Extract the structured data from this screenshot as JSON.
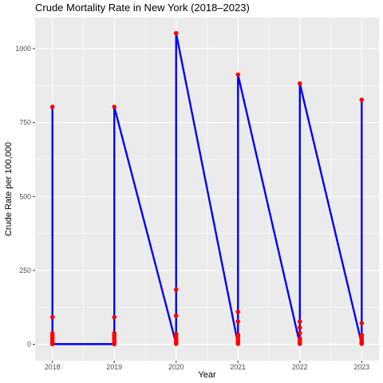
{
  "chart_data": {
    "type": "line",
    "title": "Crude Mortality Rate in New York (2018–2023)",
    "xlabel": "Year",
    "ylabel": "Crude Rate per 100,000",
    "x_ticks": [
      "2018",
      "2019",
      "2020",
      "2021",
      "2022",
      "2023"
    ],
    "y_ticks": [
      "0",
      "250",
      "500",
      "750",
      "1000"
    ],
    "xlim": [
      2017.72,
      2023.28
    ],
    "ylim": [
      -55,
      1105
    ],
    "grid": true,
    "legend": "none",
    "colors": {
      "line": "#0000ff",
      "points": "#ff0000",
      "panel": "#ebebeb",
      "grid": "#ffffff"
    },
    "series": [
      {
        "points": [
          {
            "x": 2018,
            "y": 803
          },
          {
            "x": 2018,
            "y": 92
          },
          {
            "x": 2018,
            "y": 38
          },
          {
            "x": 2018,
            "y": 30
          },
          {
            "x": 2018,
            "y": 22
          },
          {
            "x": 2018,
            "y": 15
          },
          {
            "x": 2018,
            "y": 8
          },
          {
            "x": 2018,
            "y": 4
          },
          {
            "x": 2018,
            "y": 1
          },
          {
            "x": 2019,
            "y": 1
          },
          {
            "x": 2019,
            "y": 4
          },
          {
            "x": 2019,
            "y": 8
          },
          {
            "x": 2019,
            "y": 15
          },
          {
            "x": 2019,
            "y": 22
          },
          {
            "x": 2019,
            "y": 30
          },
          {
            "x": 2019,
            "y": 38
          },
          {
            "x": 2019,
            "y": 92
          },
          {
            "x": 2019,
            "y": 803
          },
          {
            "x": 2020,
            "y": 2
          },
          {
            "x": 2020,
            "y": 5
          },
          {
            "x": 2020,
            "y": 9
          },
          {
            "x": 2020,
            "y": 17
          },
          {
            "x": 2020,
            "y": 25
          },
          {
            "x": 2020,
            "y": 35
          },
          {
            "x": 2020,
            "y": 97
          },
          {
            "x": 2020,
            "y": 185
          },
          {
            "x": 2020,
            "y": 1052
          },
          {
            "x": 2021,
            "y": 2
          },
          {
            "x": 2021,
            "y": 5
          },
          {
            "x": 2021,
            "y": 10
          },
          {
            "x": 2021,
            "y": 18
          },
          {
            "x": 2021,
            "y": 27
          },
          {
            "x": 2021,
            "y": 33
          },
          {
            "x": 2021,
            "y": 77
          },
          {
            "x": 2021,
            "y": 110
          },
          {
            "x": 2021,
            "y": 912
          },
          {
            "x": 2022,
            "y": 2
          },
          {
            "x": 2022,
            "y": 6
          },
          {
            "x": 2022,
            "y": 12
          },
          {
            "x": 2022,
            "y": 20
          },
          {
            "x": 2022,
            "y": 38
          },
          {
            "x": 2022,
            "y": 57
          },
          {
            "x": 2022,
            "y": 77
          },
          {
            "x": 2022,
            "y": 882
          },
          {
            "x": 2023,
            "y": 2
          },
          {
            "x": 2023,
            "y": 5
          },
          {
            "x": 2023,
            "y": 9
          },
          {
            "x": 2023,
            "y": 16
          },
          {
            "x": 2023,
            "y": 24
          },
          {
            "x": 2023,
            "y": 32
          },
          {
            "x": 2023,
            "y": 72
          },
          {
            "x": 2023,
            "y": 827
          }
        ]
      }
    ]
  }
}
